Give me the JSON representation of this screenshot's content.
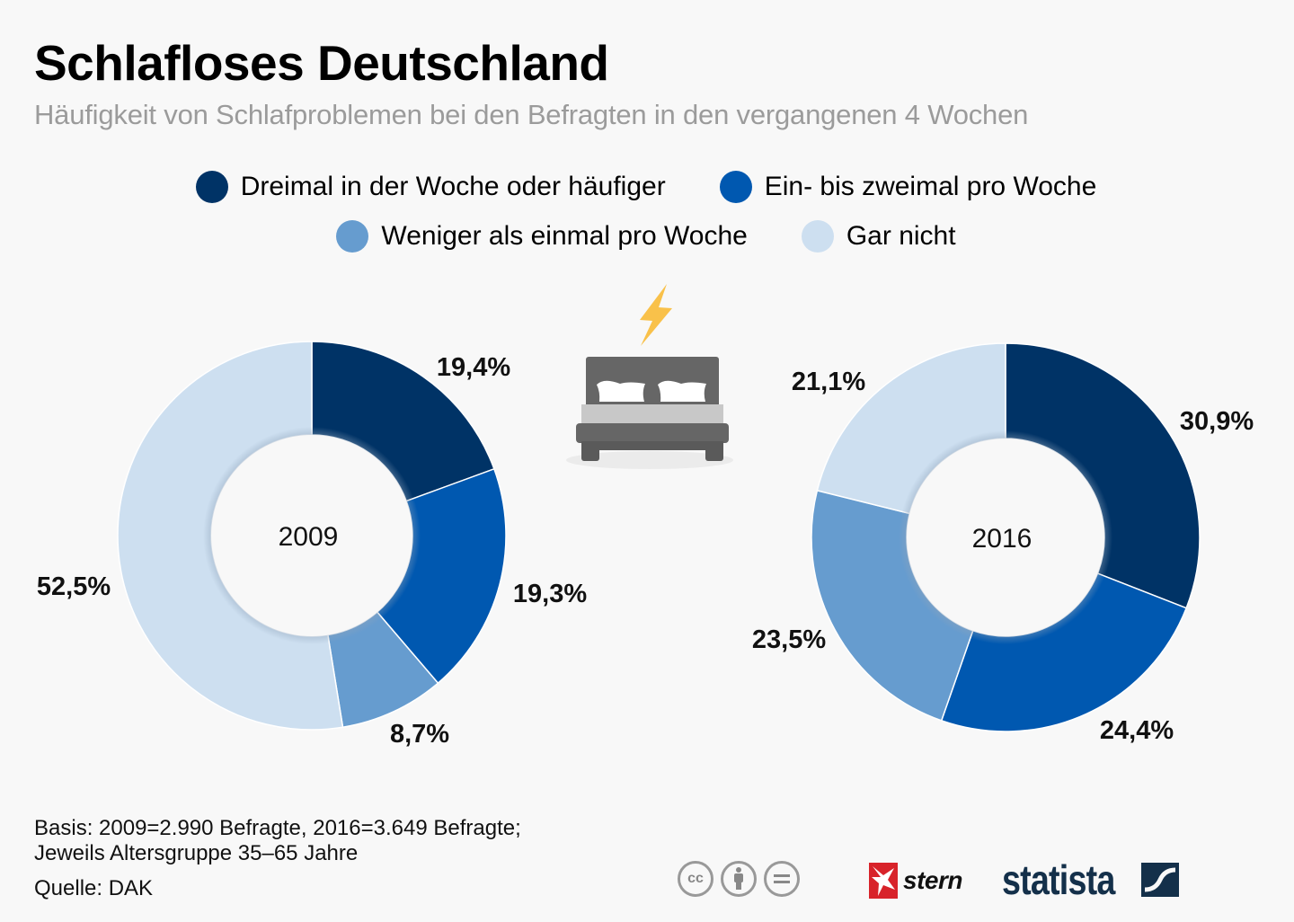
{
  "header": {
    "title": "Schlafloses Deutschland",
    "subtitle": "Häufigkeit von Schlafproblemen bei den Befragten in den vergangenen 4 Wochen"
  },
  "legend": [
    {
      "label": "Dreimal in der Woche oder häufiger",
      "color": "#003366"
    },
    {
      "label": "Ein- bis zweimal pro Woche",
      "color": "#0058b0"
    },
    {
      "label": "Weniger als einmal pro Woche",
      "color": "#669ccf"
    },
    {
      "label": "Gar nicht",
      "color": "#cddff0"
    }
  ],
  "illustration": {
    "icon": "bed-with-lightning-icon"
  },
  "chart_data": [
    {
      "type": "pie",
      "variant": "donut",
      "title": "2009",
      "categories": [
        "Dreimal in der Woche oder häufiger",
        "Ein- bis zweimal pro Woche",
        "Weniger als einmal pro Woche",
        "Gar nicht"
      ],
      "values": [
        19.4,
        19.3,
        8.7,
        52.5
      ],
      "labels": [
        "19,4%",
        "19,3%",
        "8,7%",
        "52,5%"
      ],
      "colors": [
        "#003366",
        "#0058b0",
        "#669ccf",
        "#cddff0"
      ],
      "unit": "%"
    },
    {
      "type": "pie",
      "variant": "donut",
      "title": "2016",
      "categories": [
        "Dreimal in der Woche oder häufiger",
        "Ein- bis zweimal pro Woche",
        "Weniger als einmal pro Woche",
        "Gar nicht"
      ],
      "values": [
        30.9,
        24.4,
        23.5,
        21.1
      ],
      "labels": [
        "30,9%",
        "24,4%",
        "23,5%",
        "21,1%"
      ],
      "colors": [
        "#003366",
        "#0058b0",
        "#669ccf",
        "#cddff0"
      ],
      "unit": "%"
    }
  ],
  "footer": {
    "basis_line1": "Basis: 2009=2.990 Befragte, 2016=3.649 Befragte;",
    "basis_line2": "Jeweils Altersgruppe 35–65 Jahre",
    "source": "Quelle: DAK",
    "license_icons": [
      "cc-icon",
      "attribution-icon",
      "no-derivatives-icon"
    ],
    "partner_logo": "stern",
    "brand_logo": "statista"
  }
}
